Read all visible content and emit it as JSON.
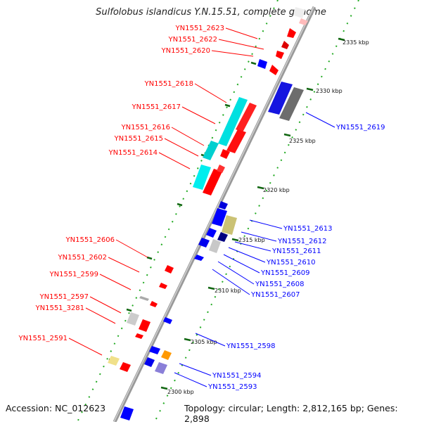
{
  "title": "Sulfolobus islandicus Y.N.15.51, complete genome",
  "accession": "Accession: NC_012623",
  "topology": "Topology: circular; Length: 2,812,165 bp; Genes: 2,898",
  "colors": {
    "forward": "#ff0000",
    "reverse": "#0000ff",
    "leader_forward": "#cc0000",
    "leader_reverse": "#0000cc",
    "backbone": "#888888",
    "tick_dots": "#229922",
    "cyan": "#00e0e0",
    "gray": "#777777",
    "light_gray": "#cccccc",
    "olive": "#cdc47a",
    "navy": "#000080",
    "orange": "#ff9900",
    "purple": "#8a7fd8",
    "yellow": "#f0e08a"
  },
  "kbp_labels": [
    "2335 kbp",
    "2330 kbp",
    "2325 kbp",
    "2320 kbp",
    "2315 kbp",
    "2310 kbp",
    "2305 kbp",
    "2300 kbp"
  ],
  "left_labels": [
    "YN1551_2623",
    "YN1551_2622",
    "YN1551_2620",
    "YN1551_2618",
    "YN1551_2617",
    "YN1551_2616",
    "YN1551_2615",
    "YN1551_2614",
    "YN1551_2606",
    "YN1551_2602",
    "YN1551_2599",
    "YN1551_2597",
    "YN1551_3281",
    "YN1551_2591"
  ],
  "right_labels": [
    "YN1551_2619",
    "YN1551_2613",
    "YN1551_2612",
    "YN1551_2611",
    "YN1551_2610",
    "YN1551_2609",
    "YN1551_2608",
    "YN1551_2607",
    "YN1551_2598",
    "YN1551_2594",
    "YN1551_2593"
  ]
}
